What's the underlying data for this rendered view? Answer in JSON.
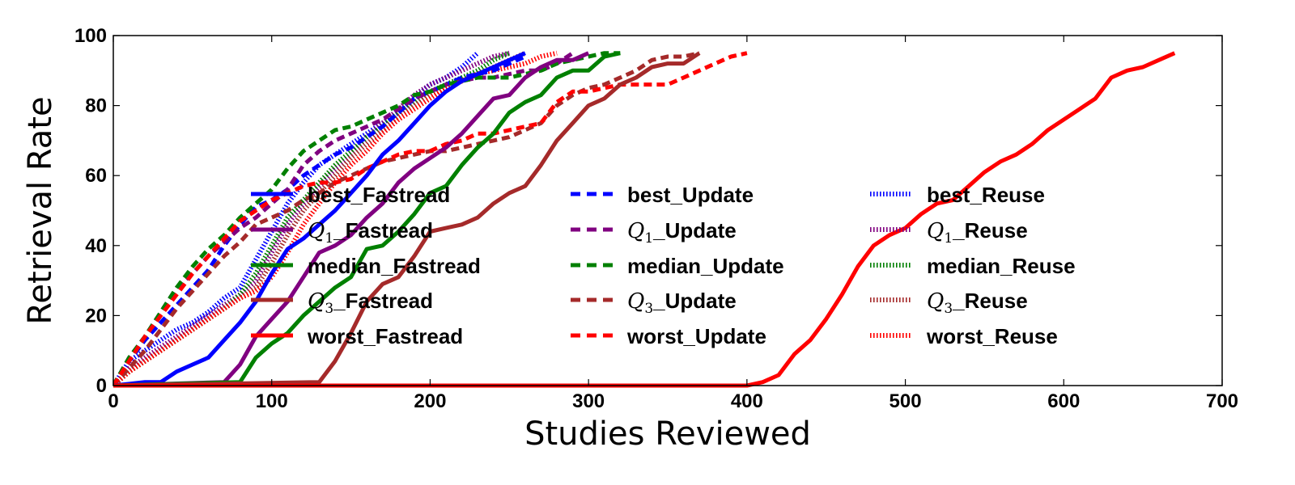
{
  "chart_data": {
    "type": "line",
    "title": "",
    "xlabel": "Studies Reviewed",
    "ylabel": "Retrieval Rate",
    "xlim": [
      0,
      700
    ],
    "ylim": [
      0,
      100
    ],
    "xticks": [
      0,
      100,
      200,
      300,
      400,
      500,
      600,
      700
    ],
    "yticks": [
      0,
      20,
      40,
      60,
      80,
      100
    ],
    "xtick_labels": [
      "0",
      "100",
      "200",
      "300",
      "400",
      "500",
      "600",
      "700"
    ],
    "ytick_labels": [
      "0",
      "20",
      "40",
      "60",
      "80",
      "100"
    ],
    "grid": false,
    "legend": {
      "placement": "center-left",
      "columns": 3
    },
    "series": [
      {
        "name": "best_Fastread",
        "label_prefix": "",
        "label_rest": "best_Fastread",
        "color": "#0000ff",
        "style": "solid",
        "x": [
          0,
          20,
          30,
          40,
          50,
          60,
          70,
          80,
          90,
          100,
          110,
          120,
          130,
          140,
          150,
          160,
          170,
          180,
          190,
          200,
          210,
          220,
          230,
          240,
          250,
          260
        ],
        "y": [
          0,
          1,
          1,
          4,
          6,
          8,
          13,
          18,
          24,
          32,
          39,
          42,
          46,
          50,
          55,
          60,
          66,
          70,
          75,
          80,
          84,
          87,
          89,
          91,
          93,
          95
        ]
      },
      {
        "name": "Q1_Fastread",
        "label_prefix": "Q",
        "label_sub": "1",
        "label_rest": "_Fastread",
        "color": "#800080",
        "style": "solid",
        "x": [
          0,
          70,
          80,
          90,
          100,
          110,
          120,
          130,
          140,
          150,
          160,
          170,
          180,
          190,
          200,
          210,
          220,
          230,
          240,
          250,
          260,
          270,
          280,
          290,
          300
        ],
        "y": [
          0,
          1,
          6,
          14,
          19,
          24,
          31,
          38,
          40,
          43,
          48,
          52,
          58,
          62,
          65,
          68,
          72,
          77,
          82,
          83,
          88,
          91,
          93,
          93,
          95
        ]
      },
      {
        "name": "median_Fastread",
        "label_prefix": "",
        "label_rest": "median_Fastread",
        "color": "#008000",
        "style": "solid",
        "x": [
          0,
          80,
          90,
          100,
          110,
          120,
          130,
          140,
          150,
          160,
          170,
          180,
          190,
          200,
          210,
          220,
          230,
          240,
          250,
          260,
          270,
          280,
          290,
          300,
          310,
          320
        ],
        "y": [
          0,
          1,
          8,
          12,
          15,
          20,
          24,
          28,
          31,
          39,
          40,
          44,
          49,
          55,
          57,
          63,
          68,
          72,
          78,
          81,
          83,
          88,
          90,
          90,
          94,
          95
        ]
      },
      {
        "name": "Q3_Fastread",
        "label_prefix": "Q",
        "label_sub": "3",
        "label_rest": "_Fastread",
        "color": "#a52a2a",
        "style": "solid",
        "x": [
          0,
          130,
          140,
          150,
          160,
          170,
          180,
          190,
          200,
          210,
          220,
          230,
          240,
          250,
          260,
          270,
          280,
          290,
          300,
          310,
          320,
          330,
          340,
          350,
          360,
          370
        ],
        "y": [
          0,
          1,
          7,
          15,
          24,
          29,
          31,
          37,
          44,
          45,
          46,
          48,
          52,
          55,
          57,
          63,
          70,
          75,
          80,
          82,
          86,
          88,
          91,
          92,
          92,
          95
        ]
      },
      {
        "name": "worst_Fastread",
        "label_prefix": "",
        "label_rest": "worst_Fastread",
        "color": "#ff0000",
        "style": "solid",
        "x": [
          0,
          400,
          410,
          420,
          430,
          440,
          450,
          460,
          470,
          480,
          490,
          500,
          510,
          520,
          530,
          540,
          550,
          560,
          570,
          580,
          590,
          600,
          610,
          620,
          630,
          640,
          650,
          660,
          670
        ],
        "y": [
          0,
          0,
          1,
          3,
          9,
          13,
          19,
          26,
          34,
          40,
          43,
          45,
          49,
          52,
          53,
          57,
          61,
          64,
          66,
          69,
          73,
          76,
          79,
          82,
          88,
          90,
          91,
          93,
          95
        ]
      },
      {
        "name": "best_Update",
        "label_prefix": "",
        "label_rest": "best_Update",
        "color": "#0000ff",
        "style": "dashed",
        "x": [
          0,
          10,
          20,
          30,
          40,
          50,
          60,
          70,
          80,
          90,
          100,
          110,
          120,
          130,
          140,
          150,
          160,
          170,
          180,
          190,
          200,
          210,
          220,
          230,
          240,
          250,
          260
        ],
        "y": [
          0,
          7,
          13,
          18,
          23,
          28,
          33,
          40,
          46,
          51,
          53,
          56,
          60,
          63,
          66,
          68,
          71,
          74,
          78,
          82,
          84,
          86,
          88,
          89,
          90,
          92,
          94
        ]
      },
      {
        "name": "Q1_Update",
        "label_prefix": "Q",
        "label_sub": "1",
        "label_rest": "_Update",
        "color": "#800080",
        "style": "dashed",
        "x": [
          0,
          10,
          20,
          30,
          40,
          50,
          60,
          70,
          80,
          90,
          100,
          110,
          120,
          130,
          140,
          150,
          160,
          170,
          180,
          190,
          200,
          210,
          220,
          230,
          240,
          250,
          260,
          270,
          280,
          290
        ],
        "y": [
          0,
          8,
          14,
          21,
          28,
          32,
          37,
          41,
          45,
          48,
          52,
          56,
          63,
          67,
          70,
          72,
          74,
          76,
          79,
          82,
          84,
          86,
          87,
          88,
          88,
          89,
          90,
          90,
          92,
          95
        ]
      },
      {
        "name": "median_Update",
        "label_prefix": "",
        "label_rest": "median_Update",
        "color": "#008000",
        "style": "dashed",
        "x": [
          0,
          10,
          20,
          30,
          40,
          50,
          60,
          70,
          80,
          90,
          100,
          110,
          120,
          130,
          140,
          150,
          160,
          170,
          180,
          190,
          200,
          210,
          220,
          230,
          240,
          250,
          260,
          270,
          280,
          290,
          300,
          310,
          320
        ],
        "y": [
          0,
          8,
          14,
          21,
          28,
          34,
          39,
          43,
          48,
          52,
          56,
          62,
          67,
          70,
          73,
          74,
          76,
          78,
          80,
          83,
          84,
          86,
          87,
          88,
          88,
          88,
          89,
          90,
          92,
          93,
          94,
          95,
          95
        ]
      },
      {
        "name": "Q3_Update",
        "label_prefix": "Q",
        "label_sub": "3",
        "label_rest": "_Update",
        "color": "#a52a2a",
        "style": "dashed",
        "x": [
          0,
          10,
          20,
          30,
          40,
          50,
          60,
          70,
          80,
          90,
          100,
          110,
          120,
          130,
          140,
          150,
          160,
          170,
          180,
          190,
          200,
          210,
          220,
          230,
          240,
          250,
          260,
          270,
          280,
          290,
          300,
          310,
          320,
          330,
          340,
          350,
          360,
          370
        ],
        "y": [
          0,
          5,
          10,
          16,
          22,
          27,
          32,
          37,
          41,
          46,
          48,
          50,
          53,
          55,
          58,
          60,
          62,
          64,
          65,
          66,
          67,
          67,
          68,
          69,
          70,
          71,
          73,
          75,
          80,
          83,
          85,
          86,
          88,
          90,
          93,
          94,
          94,
          95
        ]
      },
      {
        "name": "worst_Update",
        "label_prefix": "",
        "label_rest": "worst_Update",
        "color": "#ff0000",
        "style": "dashed",
        "x": [
          0,
          10,
          20,
          30,
          40,
          50,
          60,
          70,
          80,
          90,
          100,
          110,
          120,
          130,
          140,
          150,
          160,
          170,
          180,
          190,
          200,
          210,
          220,
          230,
          240,
          250,
          260,
          270,
          280,
          290,
          300,
          310,
          320,
          330,
          340,
          350,
          360,
          370,
          380,
          390,
          400
        ],
        "y": [
          0,
          7,
          14,
          20,
          26,
          32,
          37,
          42,
          47,
          50,
          53,
          55,
          57,
          58,
          58,
          59,
          62,
          64,
          66,
          67,
          67,
          69,
          70,
          72,
          72,
          73,
          74,
          75,
          81,
          84,
          84,
          85,
          86,
          86,
          86,
          86,
          88,
          90,
          92,
          94,
          95
        ]
      },
      {
        "name": "best_Reuse",
        "label_prefix": "",
        "label_rest": "best_Reuse",
        "color": "#0000ff",
        "style": "dotted",
        "x": [
          0,
          10,
          20,
          30,
          40,
          50,
          60,
          70,
          80,
          90,
          100,
          110,
          120,
          130,
          140,
          150,
          160,
          170,
          180,
          190,
          200,
          210,
          220,
          230
        ],
        "y": [
          0,
          7,
          10,
          13,
          16,
          18,
          21,
          25,
          28,
          36,
          44,
          52,
          58,
          63,
          66,
          69,
          72,
          75,
          78,
          82,
          86,
          88,
          91,
          95
        ]
      },
      {
        "name": "Q1_Reuse",
        "label_prefix": "Q",
        "label_sub": "1",
        "label_rest": "_Reuse",
        "color": "#800080",
        "style": "dotted",
        "x": [
          0,
          10,
          20,
          30,
          40,
          50,
          60,
          70,
          80,
          90,
          100,
          110,
          120,
          130,
          140,
          150,
          160,
          170,
          180,
          190,
          200,
          210,
          220,
          230,
          240,
          250
        ],
        "y": [
          0,
          5,
          8,
          11,
          14,
          17,
          20,
          23,
          26,
          30,
          38,
          46,
          52,
          57,
          62,
          66,
          71,
          75,
          79,
          83,
          86,
          88,
          90,
          92,
          94,
          95
        ]
      },
      {
        "name": "median_Reuse",
        "label_prefix": "",
        "label_rest": "median_Reuse",
        "color": "#008000",
        "style": "dotted",
        "x": [
          0,
          10,
          20,
          30,
          40,
          50,
          60,
          70,
          80,
          90,
          100,
          110,
          120,
          130,
          140,
          150,
          160,
          170,
          180,
          190,
          200,
          210,
          220,
          230,
          240,
          250
        ],
        "y": [
          0,
          4,
          7,
          10,
          13,
          16,
          19,
          22,
          26,
          32,
          40,
          48,
          53,
          58,
          63,
          67,
          71,
          74,
          78,
          81,
          84,
          86,
          88,
          90,
          93,
          95
        ]
      },
      {
        "name": "Q3_Reuse",
        "label_prefix": "Q",
        "label_sub": "3",
        "label_rest": "_Reuse",
        "color": "#a52a2a",
        "style": "dotted",
        "x": [
          0,
          10,
          20,
          30,
          40,
          50,
          60,
          70,
          80,
          90,
          100,
          110,
          120,
          130,
          140,
          150,
          160,
          170,
          180,
          190,
          200,
          210,
          220,
          230,
          240,
          250,
          260
        ],
        "y": [
          0,
          4,
          7,
          10,
          13,
          16,
          19,
          22,
          25,
          28,
          35,
          43,
          50,
          55,
          60,
          65,
          69,
          73,
          77,
          80,
          83,
          85,
          87,
          89,
          91,
          93,
          95
        ]
      },
      {
        "name": "worst_Reuse",
        "label_prefix": "",
        "label_rest": "worst_Reuse",
        "color": "#ff0000",
        "style": "dotted",
        "x": [
          0,
          10,
          20,
          30,
          40,
          50,
          60,
          70,
          80,
          90,
          100,
          110,
          120,
          130,
          140,
          150,
          160,
          170,
          180,
          190,
          200,
          210,
          220,
          230,
          240,
          250,
          260,
          270,
          280
        ],
        "y": [
          0,
          4,
          7,
          10,
          13,
          16,
          19,
          22,
          25,
          27,
          31,
          38,
          46,
          52,
          58,
          63,
          67,
          72,
          76,
          79,
          82,
          85,
          87,
          89,
          90,
          91,
          92,
          94,
          95
        ]
      }
    ]
  }
}
